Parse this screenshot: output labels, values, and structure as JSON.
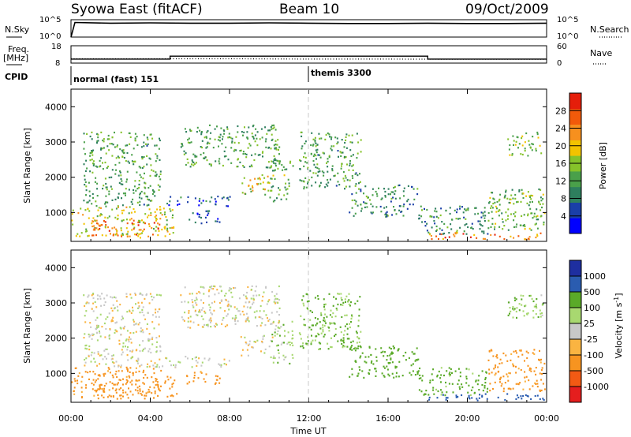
{
  "header": {
    "station": "Syowa East (fitACF)",
    "beam": "Beam 10",
    "date": "09/Oct/2009"
  },
  "aux_labels": {
    "nsky": "N.Sky",
    "nsearch": "N.Search",
    "freq": "Freq.",
    "freq_unit": "[MHz]",
    "nave": "Nave",
    "cpid": "CPID",
    "nsky_ticks": [
      "10^5",
      "10^0"
    ],
    "nsearch_ticks": [
      "10^5",
      "10^0"
    ],
    "freq_ticks": [
      "18",
      "8"
    ],
    "nave_ticks": [
      "60",
      "0"
    ]
  },
  "cpid_modes": [
    {
      "label": "normal (fast) 151",
      "start_hour": 0,
      "end_hour": 12
    },
    {
      "label": "themis 3300",
      "start_hour": 12,
      "end_hour": 24
    }
  ],
  "xaxis": {
    "label": "Time UT",
    "ticks": [
      "00:00",
      "04:00",
      "08:00",
      "12:00",
      "16:00",
      "20:00",
      "00:00"
    ],
    "range_hours": [
      0,
      24
    ]
  },
  "colors": {
    "power": [
      "#0000ff",
      "#1a3fa8",
      "#2e7f5e",
      "#4aa04a",
      "#86c32a",
      "#f2c300",
      "#f7901e",
      "#f25a0a",
      "#e51e0a"
    ],
    "velocity": [
      "#e51e1e",
      "#f25a14",
      "#f79420",
      "#fab441",
      "#c8c8c8",
      "#a8d870",
      "#5aaa28",
      "#2a5cb0",
      "#1e2fa0"
    ]
  },
  "chart_data": [
    {
      "type": "line",
      "title": "",
      "series": [
        {
          "name": "N.Sky",
          "values_desc": "log scale 10^0 to 10^5",
          "x_hours": [
            0,
            0.2,
            2,
            4,
            6,
            8,
            10,
            12,
            14,
            16,
            18,
            20,
            22,
            24
          ],
          "y_log10": [
            0,
            4.2,
            4.0,
            4.1,
            4.0,
            4.0,
            4.1,
            4.0,
            3.9,
            3.9,
            4.0,
            3.9,
            3.9,
            4.0
          ]
        }
      ],
      "ylim_log10": [
        0,
        5
      ]
    },
    {
      "type": "line",
      "title": "",
      "series": [
        {
          "name": "Freq.",
          "x_hours": [
            0,
            5,
            5,
            18,
            18,
            24
          ],
          "y": [
            10.3,
            10.3,
            12,
            12,
            10.3,
            10.3
          ]
        },
        {
          "name": "Nave",
          "x_hours": [
            0,
            4,
            8,
            12,
            16,
            20,
            24
          ],
          "y": [
            15,
            15,
            15,
            14,
            14,
            13,
            13
          ]
        }
      ],
      "ylim_freq": [
        8,
        18
      ],
      "ylim_nave": [
        0,
        60
      ]
    },
    {
      "type": "heatmap",
      "title": "",
      "quantity": "Power",
      "xlabel": "",
      "ylabel": "Slant Range [km]",
      "yticks": [
        1000,
        2000,
        3000,
        4000
      ],
      "ylim": [
        180,
        4500
      ],
      "colorbar_label": "Power [dB]",
      "colorbar_ticks": [
        4,
        8,
        12,
        16,
        20,
        24,
        28
      ],
      "colorbar_range": [
        0,
        32
      ],
      "echo_regions": [
        {
          "x0": 0.0,
          "x1": 5.3,
          "r0": 350,
          "r1": 1200,
          "value": 18
        },
        {
          "x0": 1.0,
          "x1": 4.6,
          "r0": 500,
          "r1": 800,
          "value": 26
        },
        {
          "x0": 0.3,
          "x1": 4.2,
          "r0": 300,
          "r1": 420,
          "value": 24
        },
        {
          "x0": 0.6,
          "x1": 4.5,
          "r0": 1200,
          "r1": 3300,
          "value": 12
        },
        {
          "x0": 4.5,
          "x1": 8.0,
          "r0": 1200,
          "r1": 1500,
          "value": 6
        },
        {
          "x0": 5.8,
          "x1": 7.5,
          "r0": 700,
          "r1": 1100,
          "value": 6
        },
        {
          "x0": 5.5,
          "x1": 10.5,
          "r0": 2300,
          "r1": 3500,
          "value": 12
        },
        {
          "x0": 8.5,
          "x1": 10.2,
          "r0": 1500,
          "r1": 2100,
          "value": 18
        },
        {
          "x0": 10.0,
          "x1": 11.2,
          "r0": 1300,
          "r1": 2500,
          "value": 14
        },
        {
          "x0": 11.5,
          "x1": 14.6,
          "r0": 1700,
          "r1": 3300,
          "value": 12
        },
        {
          "x0": 14.0,
          "x1": 17.5,
          "r0": 900,
          "r1": 1800,
          "value": 10
        },
        {
          "x0": 17.5,
          "x1": 21.0,
          "r0": 400,
          "r1": 1200,
          "value": 10
        },
        {
          "x0": 18.0,
          "x1": 23.9,
          "r0": 250,
          "r1": 450,
          "value": 25
        },
        {
          "x0": 21.0,
          "x1": 23.9,
          "r0": 500,
          "r1": 1700,
          "value": 14
        },
        {
          "x0": 22.0,
          "x1": 23.8,
          "r0": 2600,
          "r1": 3300,
          "value": 16
        }
      ]
    },
    {
      "type": "heatmap",
      "title": "",
      "quantity": "Velocity",
      "xlabel": "Time UT",
      "ylabel": "Slant Range [km]",
      "yticks": [
        1000,
        2000,
        3000,
        4000
      ],
      "ylim": [
        180,
        4500
      ],
      "colorbar_label": "Velocity [m s^-1]",
      "colorbar_ticks": [
        -1000,
        -500,
        -100,
        -25,
        25,
        100,
        500,
        1000
      ],
      "echo_regions": [
        {
          "x0": 0.0,
          "x1": 5.3,
          "r0": 350,
          "r1": 1200,
          "value": -150
        },
        {
          "x0": 1.0,
          "x1": 4.6,
          "r0": 500,
          "r1": 800,
          "value": -300
        },
        {
          "x0": 0.3,
          "x1": 4.2,
          "r0": 300,
          "r1": 420,
          "value": -200
        },
        {
          "x0": 0.6,
          "x1": 4.5,
          "r0": 1200,
          "r1": 3300,
          "value": 0
        },
        {
          "x0": 4.5,
          "x1": 8.0,
          "r0": 1200,
          "r1": 1500,
          "value": 0
        },
        {
          "x0": 5.8,
          "x1": 7.5,
          "r0": 700,
          "r1": 1100,
          "value": -150
        },
        {
          "x0": 5.5,
          "x1": 10.5,
          "r0": 2300,
          "r1": 3500,
          "value": 0
        },
        {
          "x0": 8.5,
          "x1": 10.2,
          "r0": 1500,
          "r1": 2100,
          "value": 0
        },
        {
          "x0": 10.0,
          "x1": 11.2,
          "r0": 1300,
          "r1": 2500,
          "value": 60
        },
        {
          "x0": 11.5,
          "x1": 14.6,
          "r0": 1700,
          "r1": 3300,
          "value": 120
        },
        {
          "x0": 14.0,
          "x1": 17.5,
          "r0": 900,
          "r1": 1800,
          "value": 300
        },
        {
          "x0": 17.5,
          "x1": 21.0,
          "r0": 400,
          "r1": 1200,
          "value": 150
        },
        {
          "x0": 18.0,
          "x1": 23.9,
          "r0": 250,
          "r1": 450,
          "value": 700
        },
        {
          "x0": 21.0,
          "x1": 23.9,
          "r0": 500,
          "r1": 1700,
          "value": -150
        },
        {
          "x0": 22.0,
          "x1": 23.8,
          "r0": 2600,
          "r1": 3300,
          "value": 80
        }
      ]
    }
  ]
}
